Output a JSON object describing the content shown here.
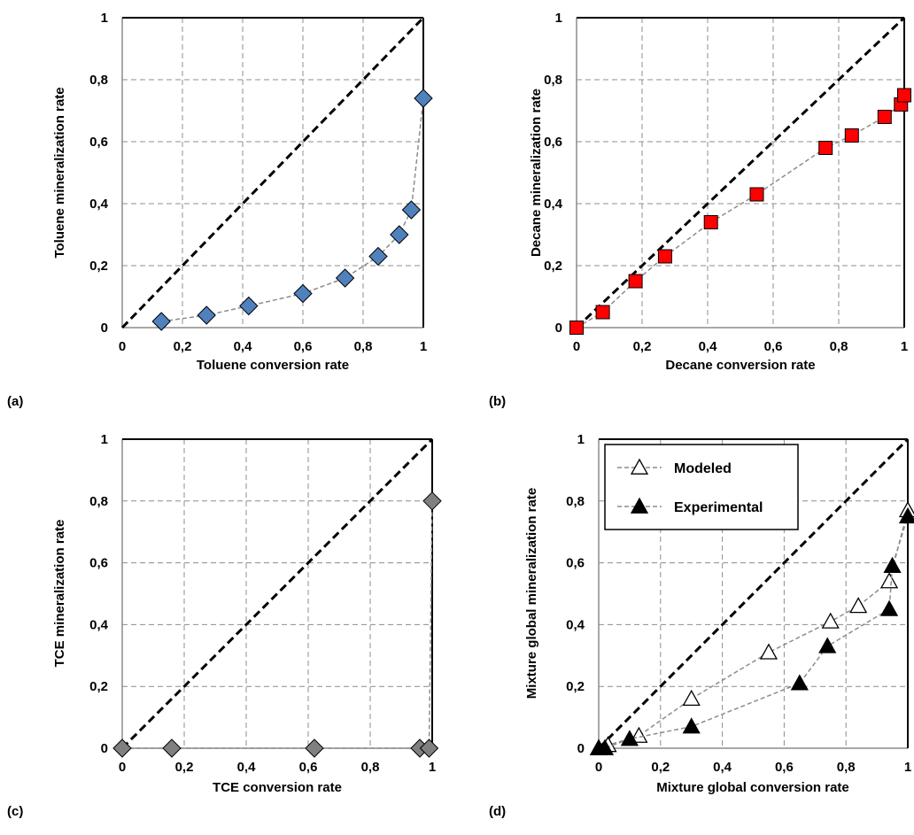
{
  "chart_data": [
    {
      "type": "scatter",
      "panel": "(a)",
      "xlabel": "Toluene conversion rate",
      "ylabel": "Toluene mineralization rate",
      "xlim": [
        0,
        1
      ],
      "ylim": [
        0,
        1
      ],
      "xticks": [
        "0",
        "0,2",
        "0,4",
        "0,6",
        "0,8",
        "1"
      ],
      "yticks": [
        "0",
        "0,2",
        "0,4",
        "0,6",
        "0,8",
        "1"
      ],
      "grid": true,
      "reference_line": "y=x",
      "series": [
        {
          "marker": "diamond",
          "color": "#4f81bd",
          "connected": true,
          "x": [
            0.13,
            0.28,
            0.42,
            0.6,
            0.74,
            0.85,
            0.92,
            0.96,
            1.0
          ],
          "y": [
            0.02,
            0.04,
            0.07,
            0.11,
            0.16,
            0.23,
            0.3,
            0.38,
            0.74
          ]
        }
      ]
    },
    {
      "type": "scatter",
      "panel": "(b)",
      "xlabel": "Decane conversion rate",
      "ylabel": "Decane mineralization rate",
      "xlim": [
        0,
        1
      ],
      "ylim": [
        0,
        1
      ],
      "xticks": [
        "0",
        "0,2",
        "0,4",
        "0,6",
        "0,8",
        "1"
      ],
      "yticks": [
        "0",
        "0,2",
        "0,4",
        "0,6",
        "0,8",
        "1"
      ],
      "grid": true,
      "reference_line": "y=x",
      "series": [
        {
          "marker": "square",
          "color": "#ff0000",
          "connected": true,
          "x": [
            0.0,
            0.08,
            0.18,
            0.27,
            0.41,
            0.55,
            0.76,
            0.84,
            0.94,
            0.99,
            1.0
          ],
          "y": [
            0.0,
            0.05,
            0.15,
            0.23,
            0.34,
            0.43,
            0.58,
            0.62,
            0.68,
            0.72,
            0.75
          ]
        }
      ]
    },
    {
      "type": "scatter",
      "panel": "(c)",
      "xlabel": "TCE conversion rate",
      "ylabel": "TCE mineralization rate",
      "xlim": [
        0,
        1
      ],
      "ylim": [
        0,
        1
      ],
      "xticks": [
        "0",
        "0,2",
        "0,4",
        "0,6",
        "0,8",
        "1"
      ],
      "yticks": [
        "0",
        "0,2",
        "0,4",
        "0,6",
        "0,8",
        "1"
      ],
      "grid": true,
      "reference_line": "y=x",
      "series": [
        {
          "marker": "diamond",
          "color": "#808080",
          "connected": true,
          "x": [
            0.0,
            0.16,
            0.62,
            0.96,
            0.99,
            1.0
          ],
          "y": [
            0.0,
            0.0,
            0.0,
            0.0,
            0.0,
            0.8
          ]
        }
      ]
    },
    {
      "type": "scatter",
      "panel": "(d)",
      "xlabel": "Mixture global conversion rate",
      "ylabel": "Mixture global mineralization rate",
      "xlim": [
        0,
        1
      ],
      "ylim": [
        0,
        1
      ],
      "xticks": [
        "0",
        "0,2",
        "0,4",
        "0,6",
        "0,8",
        "1"
      ],
      "yticks": [
        "0",
        "0,2",
        "0,4",
        "0,6",
        "0,8",
        "1"
      ],
      "grid": true,
      "reference_line": "y=x",
      "legend": "top-left",
      "series": [
        {
          "name": "Modeled",
          "marker": "triangle-open",
          "color": "#ffffff",
          "connected": true,
          "x": [
            0.0,
            0.03,
            0.13,
            0.3,
            0.55,
            0.75,
            0.84,
            0.94,
            1.0
          ],
          "y": [
            0.0,
            0.01,
            0.04,
            0.16,
            0.31,
            0.41,
            0.46,
            0.54,
            0.77
          ]
        },
        {
          "name": "Experimental",
          "marker": "triangle-filled",
          "color": "#000000",
          "connected": true,
          "x": [
            0.0,
            0.02,
            0.1,
            0.3,
            0.65,
            0.74,
            0.94,
            0.95,
            1.0
          ],
          "y": [
            0.0,
            0.0,
            0.03,
            0.07,
            0.21,
            0.33,
            0.45,
            0.59,
            0.75
          ]
        }
      ]
    }
  ]
}
